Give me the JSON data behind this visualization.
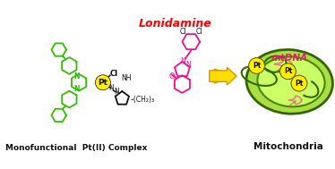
{
  "bg_color": "#ffffff",
  "green_color": "#33bb00",
  "dark_green": "#226600",
  "yellow_color": "#ffee00",
  "pink_color": "#ee1188",
  "black_color": "#111111",
  "red_color": "#ff0000",
  "mito_outer": "#88cc22",
  "mito_inner": "#bbee55",
  "mito_lightest": "#ccff77",
  "salmon": "#dd8866",
  "title": "Monofunctional  Pt(II) Complex",
  "title2": "Mitochondria",
  "lonidamine_label": "Lonidamine",
  "mtdna_label": "mtDNA",
  "pt_label": "Pt"
}
